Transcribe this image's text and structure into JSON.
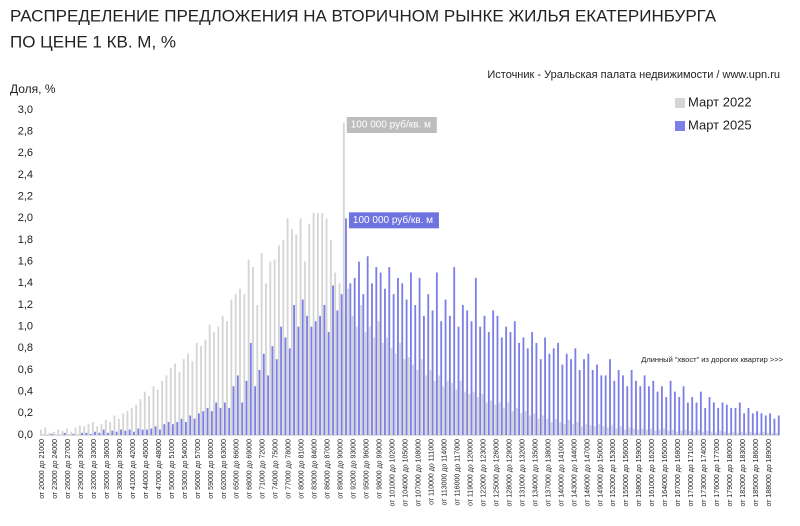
{
  "chart_data": {
    "type": "bar",
    "title": [
      "РАСПРЕДЕЛЕНИЕ ПРЕДЛОЖЕНИЯ НА ВТОРИЧНОМ РЫНКЕ ЖИЛЬЯ ЕКАТЕРИНБУРГА",
      "ПО ЦЕНЕ 1 КВ. М, %"
    ],
    "source": "Источник - Уральская палата недвижимости / www.upn.ru",
    "y_label": "Доля, %",
    "annotation": "Длинный \"хвост\" из дорогих квартир >>>",
    "grid": false,
    "legend": "top-right",
    "ylim": [
      0,
      3.0
    ],
    "yticks": [
      {
        "value": 0,
        "label": "0,0"
      },
      {
        "value": 0.2,
        "label": "0,2"
      },
      {
        "value": 0.4,
        "label": "0,4"
      },
      {
        "value": 0.6,
        "label": "0,6"
      },
      {
        "value": 0.8,
        "label": "0,8"
      },
      {
        "value": 1.0,
        "label": "1,0"
      },
      {
        "value": 1.2,
        "label": "1,2"
      },
      {
        "value": 1.4,
        "label": "1,4"
      },
      {
        "value": 1.6,
        "label": "1,6"
      },
      {
        "value": 1.8,
        "label": "1,8"
      },
      {
        "value": 2.0,
        "label": "2,0"
      },
      {
        "value": 2.2,
        "label": "2,2"
      },
      {
        "value": 2.4,
        "label": "2,4"
      },
      {
        "value": 2.6,
        "label": "2,6"
      },
      {
        "value": 2.8,
        "label": "2,8"
      },
      {
        "value": 3.0,
        "label": "3,0"
      }
    ],
    "categories": [
      "от 20000 до 21000",
      null,
      null,
      "от 23000 до 24000",
      null,
      null,
      "от 26000 до 27000",
      null,
      null,
      "от 29000 до 30000",
      null,
      null,
      "от 32000 до 33000",
      null,
      null,
      "от 35000 до 36000",
      null,
      null,
      "от 38000 до 39000",
      null,
      null,
      "от 41000 до 42000",
      null,
      null,
      "от 44000 до 45000",
      null,
      null,
      "от 47000 до 48000",
      null,
      null,
      "от 50000 до 51000",
      null,
      null,
      "от 53000 до 54000",
      null,
      null,
      "от 56000 до 57000",
      null,
      null,
      "от 59000 до 60000",
      null,
      null,
      "от 62000 до 63000",
      null,
      null,
      "от 65000 до 66000",
      null,
      null,
      "от 68000 до 69000",
      null,
      null,
      "от 71000 до 72000",
      null,
      null,
      "от 74000 до 75000",
      null,
      null,
      "от 77000 до 78000",
      null,
      null,
      "от 80000 до 81000",
      null,
      null,
      "от 83000 до 84000",
      null,
      null,
      "от 86000 до 87000",
      null,
      null,
      "от 89000 до 90000",
      null,
      null,
      "от 92000 до 93000",
      null,
      null,
      "от 95000 до 96000",
      null,
      null,
      "от 98000 до 99000",
      null,
      null,
      "от 101000 до 102000",
      null,
      null,
      "от 104000 до 105000",
      null,
      null,
      "от 107000 до 108000",
      null,
      null,
      "от 110000 до 111000",
      null,
      null,
      "от 113000 до 114000",
      null,
      null,
      "от 116000 до 117000",
      null,
      null,
      "от 119000 до 120000",
      null,
      null,
      "от 122000 до 123000",
      null,
      null,
      "от 125000 до 126000",
      null,
      null,
      "от 128000 до 129000",
      null,
      null,
      "от 131000 до 132000",
      null,
      null,
      "от 134000 до 135000",
      null,
      null,
      "от 137000 до 138000",
      null,
      null,
      "от 140000 до 141000",
      null,
      null,
      "от 143000 до 144000",
      null,
      null,
      "от 146000 до 147000",
      null,
      null,
      "от 149000 до 150000",
      null,
      null,
      "от 152000 до 153000",
      null,
      null,
      "от 155000 до 156000",
      null,
      null,
      "от 158000 до 159000",
      null,
      null,
      "от 161000 до 162000",
      null,
      null,
      "от 164000 до 165000",
      null,
      null,
      "от 167000 до 168000",
      null,
      null,
      "от 170000 до 171000",
      null,
      null,
      "от 173000 до 174000",
      null,
      null,
      "от 176000 до 177000",
      null,
      null,
      "от 179000 до 180000",
      null,
      null,
      "от 182000 до 183000",
      null,
      null,
      "от 185000 до 186000",
      null,
      null,
      "от 188000 до 189000",
      null,
      null
    ],
    "series": [
      {
        "name": "Март 2022",
        "color": "#d5d5d5",
        "label_color": "#bdbdbd",
        "peak_label": "100 000 руб/кв. м",
        "values": [
          0.05,
          0.07,
          0.02,
          0.03,
          0.05,
          0.04,
          0.06,
          0.03,
          0.07,
          0.09,
          0.08,
          0.1,
          0.12,
          0.08,
          0.1,
          0.14,
          0.12,
          0.18,
          0.15,
          0.2,
          0.22,
          0.25,
          0.28,
          0.33,
          0.4,
          0.36,
          0.45,
          0.42,
          0.5,
          0.55,
          0.62,
          0.66,
          0.58,
          0.7,
          0.75,
          0.68,
          0.85,
          0.82,
          0.88,
          1.02,
          0.95,
          1.0,
          1.1,
          1.05,
          1.25,
          1.3,
          1.35,
          1.3,
          1.62,
          1.55,
          1.2,
          1.68,
          1.4,
          1.6,
          1.62,
          1.75,
          1.8,
          2.0,
          1.9,
          1.85,
          2.0,
          1.6,
          1.95,
          2.05,
          2.05,
          2.05,
          2.0,
          1.8,
          1.5,
          1.4,
          2.88,
          1.35,
          1.1,
          1.0,
          1.2,
          0.95,
          1.0,
          0.9,
          1.05,
          0.85,
          0.9,
          0.8,
          0.75,
          0.85,
          0.7,
          0.72,
          0.65,
          0.6,
          0.7,
          0.55,
          0.6,
          0.5,
          0.55,
          0.45,
          0.5,
          0.48,
          0.42,
          0.5,
          0.4,
          0.38,
          0.4,
          0.35,
          0.38,
          0.3,
          0.32,
          0.28,
          0.3,
          0.25,
          0.3,
          0.22,
          0.25,
          0.2,
          0.22,
          0.18,
          0.2,
          0.15,
          0.18,
          0.15,
          0.12,
          0.15,
          0.12,
          0.1,
          0.14,
          0.1,
          0.12,
          0.08,
          0.1,
          0.09,
          0.08,
          0.1,
          0.08,
          0.07,
          0.09,
          0.06,
          0.08,
          0.05,
          0.07,
          0.06,
          0.05,
          0.06,
          0.05,
          0.06,
          0.04,
          0.05,
          0.06,
          0.04,
          0.05,
          0.03,
          0.04,
          0.05,
          0.04,
          0.03,
          0.05,
          0.03,
          0.04,
          0.03,
          0.02,
          0.04,
          0.03,
          0.02,
          0.03,
          0.02,
          0.03,
          0.02,
          0.03,
          0.02,
          0.02,
          0.03,
          0.02,
          0.02,
          0.02
        ]
      },
      {
        "name": "Март 2025",
        "color": "#7c80e6",
        "label_color": "#6f73e0",
        "peak_label": "100 000 руб/кв. м",
        "values": [
          0,
          0,
          0.01,
          0,
          0,
          0.02,
          0,
          0.01,
          0,
          0.02,
          0.02,
          0.01,
          0.03,
          0.02,
          0.05,
          0.02,
          0.04,
          0.03,
          0.05,
          0.04,
          0.05,
          0.03,
          0.06,
          0.05,
          0.05,
          0.06,
          0.08,
          0.05,
          0.1,
          0.12,
          0.1,
          0.12,
          0.15,
          0.12,
          0.18,
          0.15,
          0.2,
          0.22,
          0.25,
          0.22,
          0.3,
          0.25,
          0.3,
          0.25,
          0.45,
          0.55,
          0.3,
          0.5,
          0.85,
          0.45,
          0.6,
          0.75,
          0.55,
          0.82,
          0.7,
          1.0,
          0.9,
          0.8,
          1.2,
          1.0,
          1.25,
          1.1,
          1.0,
          1.05,
          1.1,
          1.2,
          0.95,
          1.38,
          1.15,
          1.3,
          2.0,
          1.4,
          1.45,
          1.6,
          1.3,
          1.65,
          1.4,
          1.55,
          1.5,
          1.35,
          1.55,
          1.3,
          1.45,
          1.4,
          1.25,
          1.5,
          1.2,
          1.45,
          1.1,
          1.3,
          1.15,
          1.5,
          1.05,
          1.25,
          1.1,
          1.55,
          1.0,
          1.2,
          1.15,
          1.05,
          1.45,
          1.0,
          1.1,
          0.95,
          1.15,
          1.1,
          0.9,
          1.0,
          0.95,
          1.05,
          0.85,
          0.9,
          0.8,
          0.95,
          0.85,
          0.7,
          0.9,
          0.75,
          0.8,
          0.85,
          0.65,
          0.75,
          0.7,
          0.8,
          0.6,
          0.7,
          0.75,
          0.6,
          0.65,
          0.55,
          0.55,
          0.7,
          0.5,
          0.6,
          0.55,
          0.45,
          0.6,
          0.5,
          0.45,
          0.55,
          0.45,
          0.5,
          0.4,
          0.45,
          0.35,
          0.5,
          0.4,
          0.35,
          0.45,
          0.3,
          0.35,
          0.3,
          0.4,
          0.25,
          0.35,
          0.3,
          0.25,
          0.3,
          0.28,
          0.25,
          0.25,
          0.3,
          0.2,
          0.25,
          0.2,
          0.22,
          0.2,
          0.18,
          0.2,
          0.15,
          0.18
        ]
      }
    ]
  }
}
